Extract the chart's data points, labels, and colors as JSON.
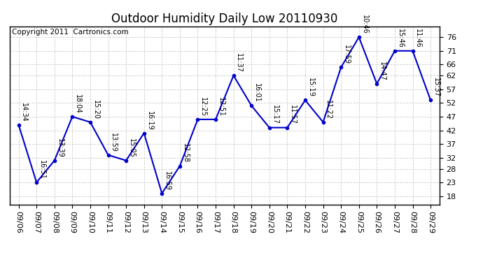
{
  "title": "Outdoor Humidity Daily Low 20110930",
  "copyright": "Copyright 2011  Cartronics.com",
  "dates": [
    "09/06",
    "09/07",
    "09/08",
    "09/09",
    "09/10",
    "09/11",
    "09/12",
    "09/13",
    "09/14",
    "09/15",
    "09/16",
    "09/17",
    "09/18",
    "09/19",
    "09/20",
    "09/21",
    "09/22",
    "09/23",
    "09/24",
    "09/25",
    "09/26",
    "09/27",
    "09/28",
    "09/29"
  ],
  "values": [
    44,
    23,
    31,
    47,
    45,
    33,
    31,
    41,
    19,
    29,
    46,
    46,
    62,
    51,
    43,
    43,
    53,
    45,
    65,
    76,
    59,
    71,
    71,
    53
  ],
  "labels": [
    "14:34",
    "16:51",
    "13:39",
    "18:04",
    "15:20",
    "13:59",
    "15:05",
    "16:19",
    "16:59",
    "12:58",
    "12:25",
    "12:51",
    "11:37",
    "16:01",
    "15:17",
    "11:57",
    "15:19",
    "11:22",
    "17:59",
    "10:46",
    "14:47",
    "15:46",
    "11:46",
    "15:37"
  ],
  "line_color": "#0000cc",
  "marker_color": "#0000cc",
  "bg_color": "#ffffff",
  "grid_color": "#cccccc",
  "ylim_min": 15,
  "ylim_max": 80,
  "yticks": [
    18,
    23,
    28,
    32,
    37,
    42,
    47,
    52,
    57,
    62,
    66,
    71,
    76
  ],
  "title_fontsize": 12,
  "label_fontsize": 7,
  "copyright_fontsize": 7.5,
  "tick_fontsize": 8
}
